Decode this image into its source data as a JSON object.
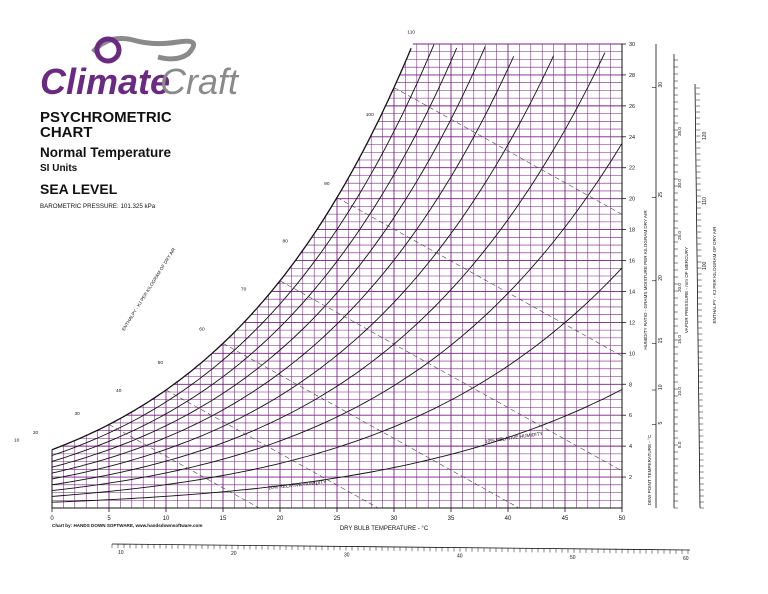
{
  "brand": {
    "name_part1": "Climate",
    "name_part2": "Craft",
    "colors": {
      "purple": "#6b2a82",
      "gray": "#8a8a8a"
    }
  },
  "header": {
    "title_line1": "PSYCHROMETRIC",
    "title_line2": "CHART",
    "subtitle": "Normal Temperature",
    "units": "SI Units",
    "level": "SEA LEVEL",
    "pressure": "BAROMETRIC PRESSURE: 101.325 kPa"
  },
  "credit": "Chart by: HANDS DOWN SOFTWARE, www.handsdownsoftware.com",
  "colors": {
    "grid": "#7a1f86",
    "curve": "#111111",
    "dashed": "#444444"
  },
  "chart_data": {
    "type": "psychrometric",
    "xlabel": "DRY BULB TEMPERATURE - °C",
    "ylabel": "HUMIDITY RATIO - GRAMS MOISTURE PER KILOGRAM DRY AIR",
    "xlim": [
      0,
      50
    ],
    "ylim": [
      0,
      30
    ],
    "x_ticks": [
      "0",
      "5",
      "10",
      "15",
      "20",
      "25",
      "30",
      "35",
      "40",
      "45",
      "50"
    ],
    "y_ticks": [
      "2",
      "4",
      "6",
      "8",
      "10",
      "12",
      "14",
      "16",
      "18",
      "20",
      "22",
      "24",
      "26",
      "28",
      "30"
    ],
    "grid": true,
    "saturation_temps_c": [
      0,
      5,
      10,
      15,
      20,
      25,
      30,
      35,
      40,
      45,
      50
    ],
    "relative_humidity_pct": [
      10,
      20,
      30,
      40,
      50,
      60,
      70,
      80,
      90
    ],
    "rh_labels": [
      "10% RELATIVE HUMIDITY",
      "20% RELATIVE HUMIDITY"
    ],
    "enthalpy_scale_labels": [
      "10",
      "20",
      "30",
      "40",
      "50",
      "60",
      "70",
      "80",
      "90",
      "100",
      "110",
      "120"
    ],
    "right_axis_labels": [
      "HUMIDITY RATIO - GRAMS MOISTURE PER KILOGRAM DRY AIR",
      "DEW POINT TEMPERATURE - °C",
      "VAPOR PRESSURE - mm OF MERCURY",
      "ENTHALPY - KJ PER KILOGRAM OF DRY AIR"
    ],
    "left_scale_label": "ENTHALPY - KJ PER KILOGRAM OF DRY AIR",
    "dewpoint_ticks": [
      "5",
      "10",
      "15",
      "20",
      "25",
      "30"
    ],
    "vapor_pressure_ticks": [
      "5.0",
      "10.0",
      "15.0",
      "20.0",
      "25.0",
      "30.0",
      "35.0"
    ],
    "enthalpy_right_ticks": [
      "100",
      "110",
      "120"
    ],
    "bottom_scale_ticks": [
      "10",
      "20",
      "30",
      "40",
      "50",
      "60"
    ]
  }
}
